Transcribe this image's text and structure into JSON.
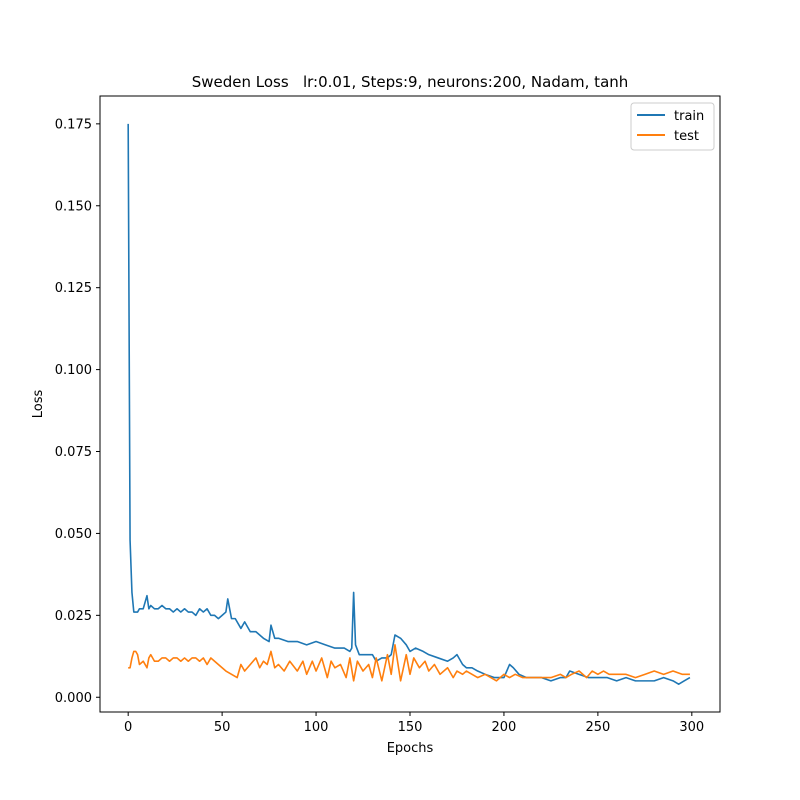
{
  "chart_data": {
    "type": "line",
    "title": "Sweden Loss   lr:0.01, Steps:9, neurons:200, Nadam, tanh",
    "xlabel": "Epochs",
    "ylabel": "Loss",
    "xlim": [
      -15,
      315
    ],
    "ylim": [
      -0.0045,
      0.1835
    ],
    "xticks": [
      0,
      50,
      100,
      150,
      200,
      250,
      300
    ],
    "xtick_labels": [
      "0",
      "50",
      "100",
      "150",
      "200",
      "250",
      "300"
    ],
    "yticks": [
      0.0,
      0.025,
      0.05,
      0.075,
      0.1,
      0.125,
      0.15,
      0.175
    ],
    "ytick_labels": [
      "0.000",
      "0.025",
      "0.050",
      "0.075",
      "0.100",
      "0.125",
      "0.150",
      "0.175"
    ],
    "grid": false,
    "legend_position": "top-right",
    "series": [
      {
        "name": "train",
        "color": "#1f77b4",
        "x": [
          0,
          1,
          2,
          3,
          4,
          5,
          6,
          8,
          10,
          11,
          12,
          14,
          16,
          18,
          20,
          22,
          24,
          26,
          28,
          30,
          32,
          34,
          36,
          38,
          40,
          42,
          44,
          46,
          48,
          50,
          52,
          53,
          55,
          57,
          60,
          62,
          65,
          68,
          70,
          72,
          75,
          76,
          78,
          80,
          85,
          90,
          95,
          100,
          105,
          110,
          115,
          118,
          119,
          120,
          121,
          123,
          126,
          130,
          132,
          135,
          138,
          140,
          142,
          145,
          148,
          150,
          153,
          157,
          160,
          165,
          170,
          173,
          175,
          178,
          180,
          183,
          186,
          190,
          195,
          200,
          203,
          205,
          208,
          212,
          216,
          220,
          225,
          230,
          233,
          235,
          240,
          245,
          250,
          255,
          260,
          265,
          270,
          275,
          280,
          285,
          290,
          293,
          296,
          299
        ],
        "y": [
          0.175,
          0.048,
          0.032,
          0.026,
          0.026,
          0.026,
          0.027,
          0.027,
          0.031,
          0.027,
          0.028,
          0.027,
          0.027,
          0.028,
          0.027,
          0.027,
          0.026,
          0.027,
          0.026,
          0.027,
          0.026,
          0.026,
          0.025,
          0.027,
          0.026,
          0.027,
          0.025,
          0.025,
          0.024,
          0.025,
          0.026,
          0.03,
          0.024,
          0.024,
          0.021,
          0.023,
          0.02,
          0.02,
          0.019,
          0.018,
          0.017,
          0.022,
          0.018,
          0.018,
          0.017,
          0.017,
          0.016,
          0.017,
          0.016,
          0.015,
          0.015,
          0.014,
          0.015,
          0.032,
          0.016,
          0.013,
          0.013,
          0.013,
          0.011,
          0.012,
          0.012,
          0.013,
          0.019,
          0.018,
          0.016,
          0.014,
          0.015,
          0.014,
          0.013,
          0.012,
          0.011,
          0.012,
          0.013,
          0.01,
          0.009,
          0.009,
          0.008,
          0.007,
          0.006,
          0.006,
          0.01,
          0.009,
          0.007,
          0.006,
          0.006,
          0.006,
          0.005,
          0.006,
          0.006,
          0.008,
          0.007,
          0.006,
          0.006,
          0.006,
          0.005,
          0.006,
          0.005,
          0.005,
          0.005,
          0.006,
          0.005,
          0.004,
          0.005,
          0.006
        ]
      },
      {
        "name": "test",
        "color": "#ff7f0e",
        "x": [
          0,
          1,
          2,
          3,
          4,
          5,
          6,
          8,
          10,
          11,
          12,
          14,
          16,
          18,
          20,
          22,
          24,
          26,
          28,
          30,
          32,
          34,
          36,
          38,
          40,
          42,
          44,
          46,
          48,
          50,
          52,
          55,
          58,
          60,
          62,
          65,
          68,
          70,
          72,
          74,
          76,
          78,
          80,
          83,
          86,
          90,
          93,
          95,
          98,
          100,
          103,
          106,
          108,
          110,
          113,
          116,
          118,
          120,
          122,
          125,
          128,
          130,
          132,
          135,
          138,
          140,
          142,
          145,
          148,
          150,
          152,
          155,
          158,
          160,
          163,
          166,
          170,
          173,
          175,
          178,
          180,
          183,
          186,
          190,
          193,
          196,
          200,
          203,
          206,
          210,
          215,
          220,
          225,
          230,
          233,
          236,
          240,
          244,
          247,
          250,
          253,
          256,
          260,
          265,
          270,
          275,
          280,
          285,
          290,
          295,
          299
        ],
        "y": [
          0.009,
          0.009,
          0.012,
          0.014,
          0.014,
          0.013,
          0.01,
          0.011,
          0.009,
          0.012,
          0.013,
          0.011,
          0.011,
          0.012,
          0.012,
          0.011,
          0.012,
          0.012,
          0.011,
          0.012,
          0.011,
          0.012,
          0.012,
          0.011,
          0.012,
          0.01,
          0.012,
          0.011,
          0.01,
          0.009,
          0.008,
          0.007,
          0.006,
          0.01,
          0.008,
          0.01,
          0.012,
          0.009,
          0.011,
          0.01,
          0.014,
          0.009,
          0.01,
          0.008,
          0.011,
          0.008,
          0.011,
          0.007,
          0.011,
          0.008,
          0.012,
          0.006,
          0.011,
          0.009,
          0.01,
          0.006,
          0.012,
          0.005,
          0.011,
          0.008,
          0.01,
          0.006,
          0.012,
          0.005,
          0.013,
          0.007,
          0.016,
          0.005,
          0.013,
          0.007,
          0.012,
          0.009,
          0.011,
          0.008,
          0.01,
          0.007,
          0.009,
          0.006,
          0.008,
          0.007,
          0.008,
          0.007,
          0.006,
          0.007,
          0.006,
          0.005,
          0.007,
          0.006,
          0.007,
          0.006,
          0.006,
          0.006,
          0.006,
          0.007,
          0.006,
          0.007,
          0.008,
          0.006,
          0.008,
          0.007,
          0.008,
          0.007,
          0.007,
          0.007,
          0.006,
          0.007,
          0.008,
          0.007,
          0.008,
          0.007,
          0.007
        ]
      }
    ]
  }
}
